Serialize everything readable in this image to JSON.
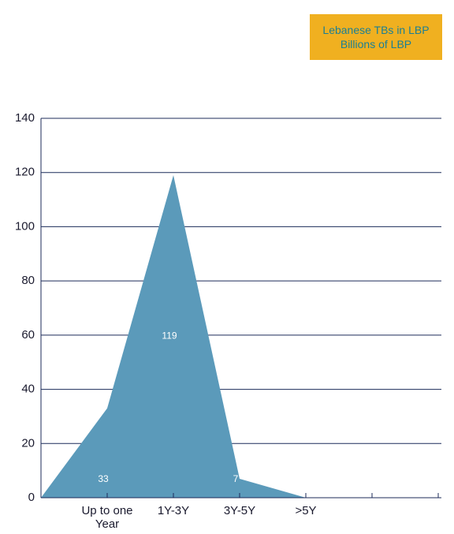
{
  "chart_data": {
    "type": "area",
    "title": "Lebanese TBs in LBP",
    "subtitle": "Billions of LBP",
    "categories": [
      "Up to one Year",
      "1Y-3Y",
      "3Y-5Y",
      ">5Y",
      null,
      null
    ],
    "values": [
      33,
      119,
      7,
      0,
      null,
      null
    ],
    "color": "#5b9aba",
    "ylim": [
      0,
      140
    ],
    "yticks": [
      0,
      20,
      40,
      60,
      80,
      100,
      120,
      140
    ],
    "grid": true
  }
}
